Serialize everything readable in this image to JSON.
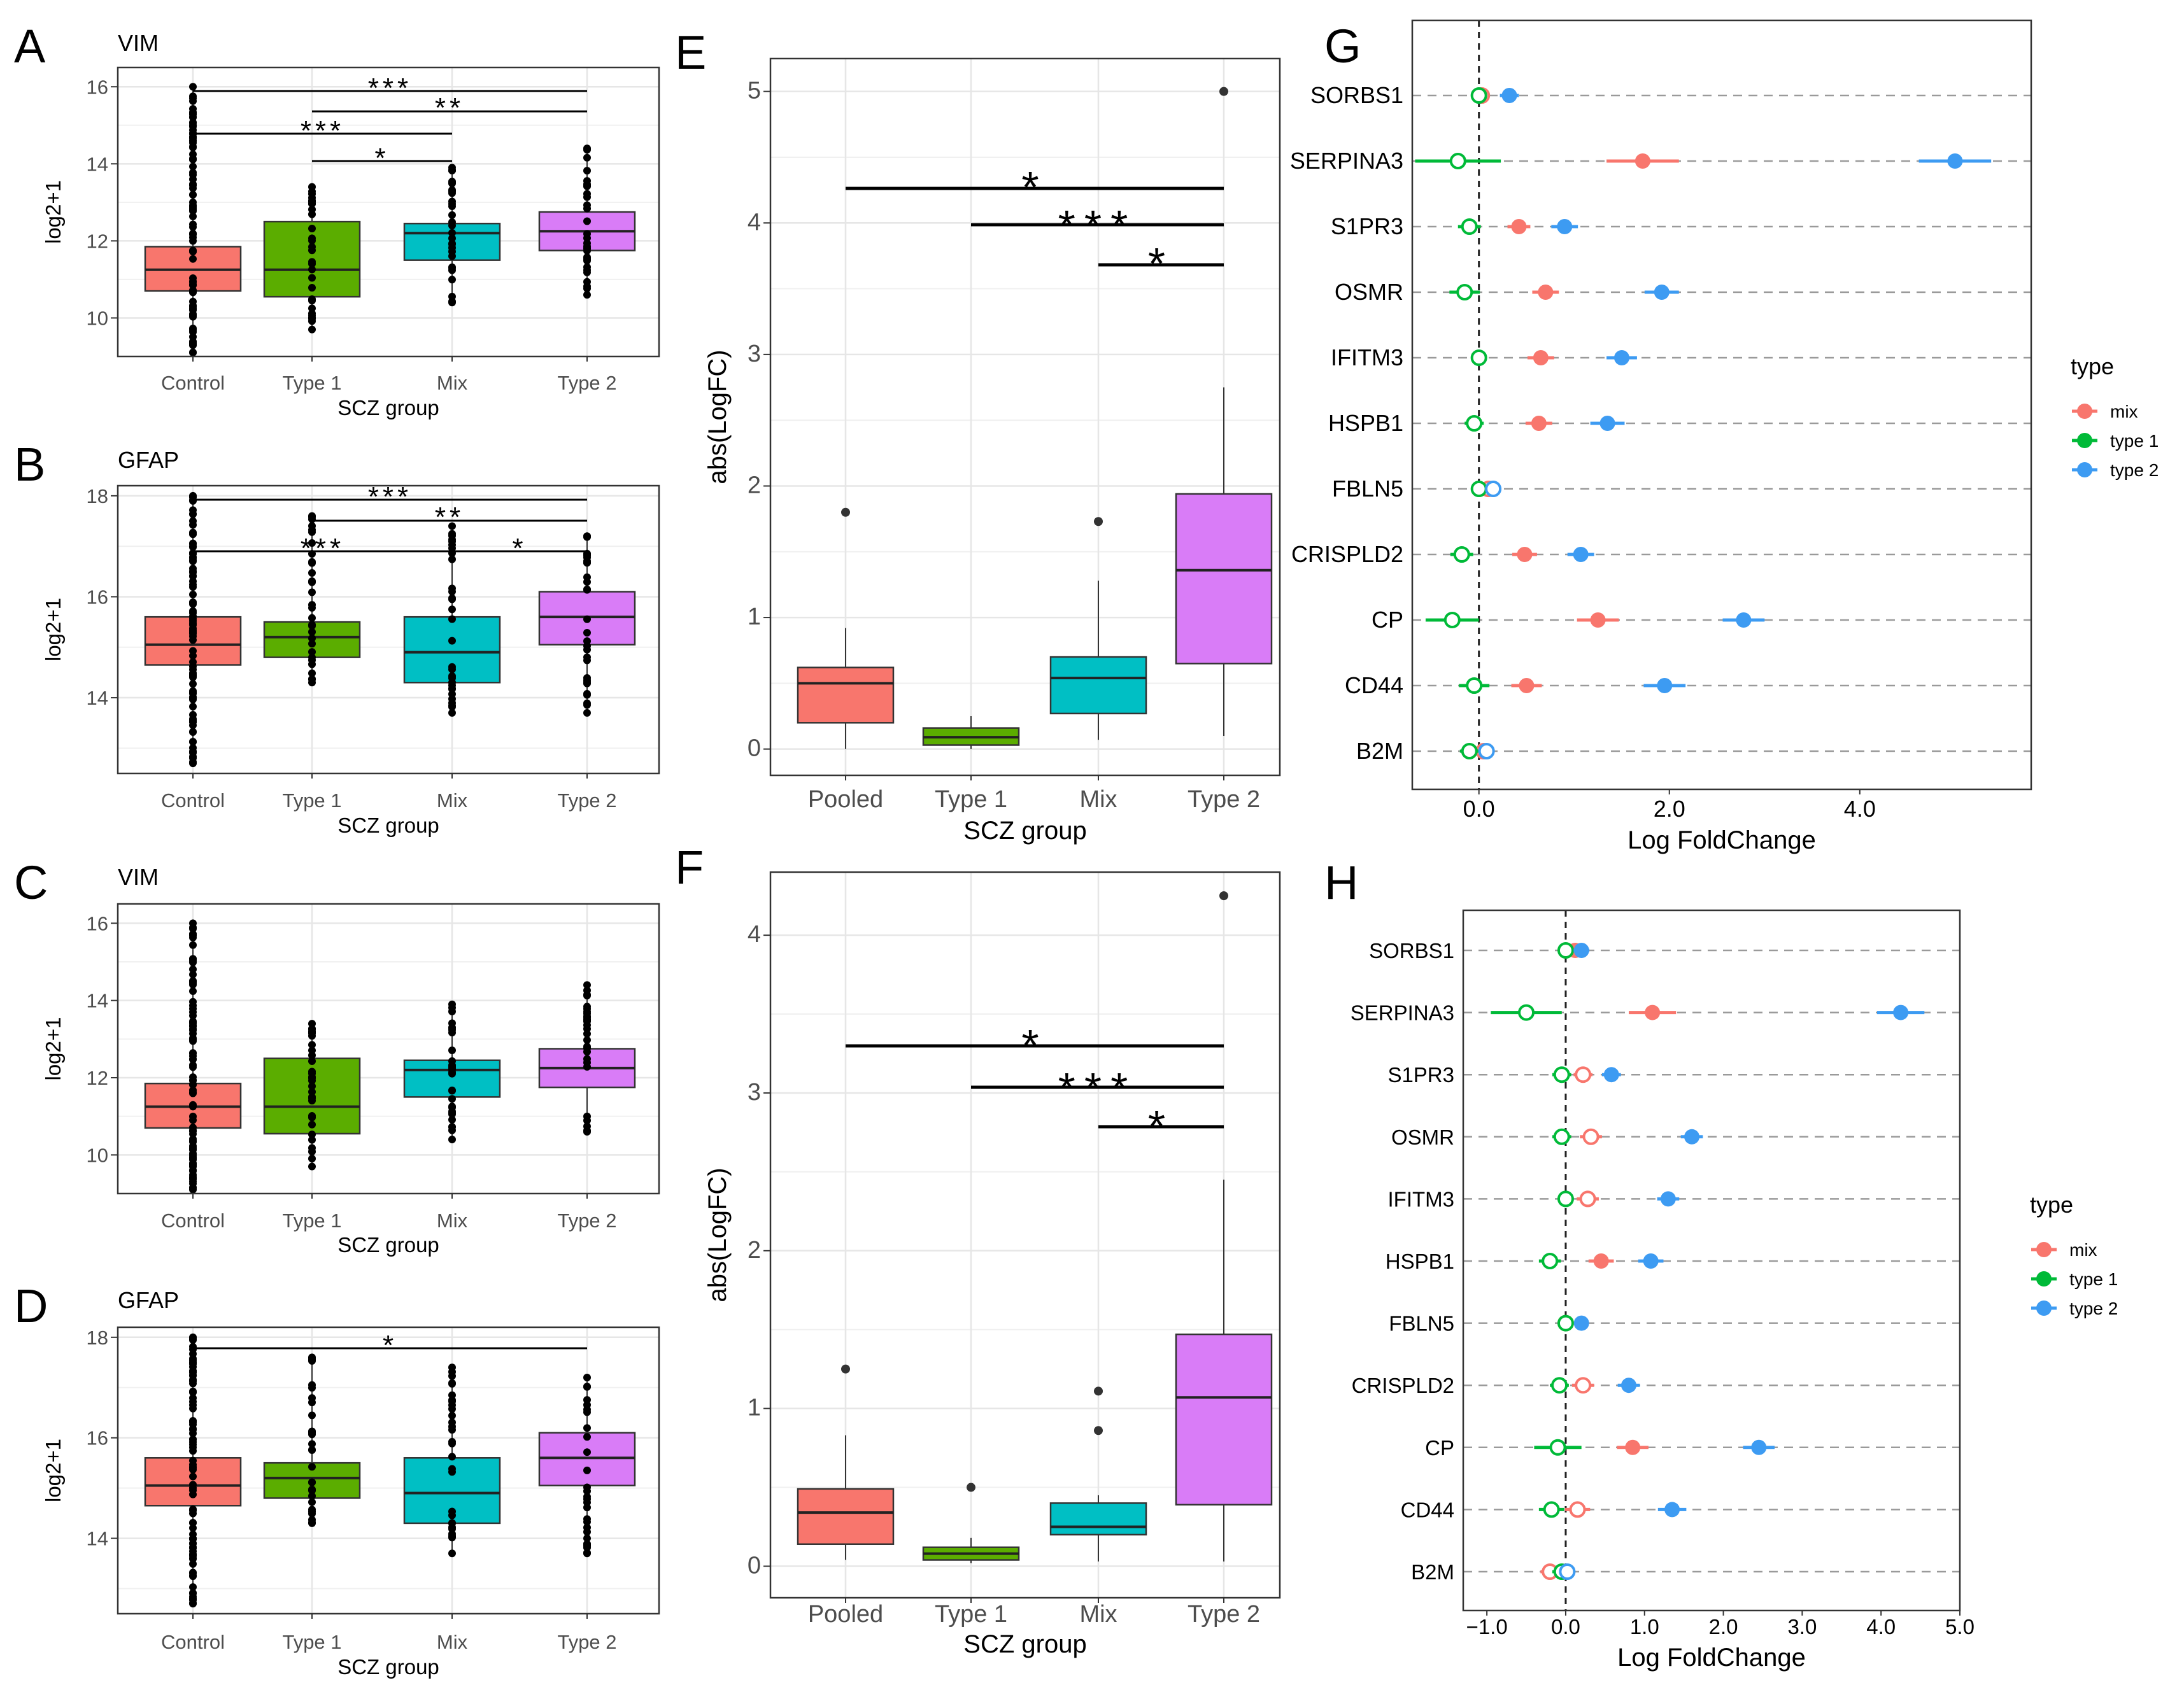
{
  "chart_data": [
    {
      "panel": "A",
      "type": "box",
      "title": "VIM",
      "xlabel": "SCZ group",
      "ylabel": "log2+1",
      "ylim": [
        9,
        16.5
      ],
      "yticks": [
        10,
        12,
        14,
        16
      ],
      "categories": [
        "Control",
        "Type 1",
        "Mix",
        "Type 2"
      ],
      "colors": [
        "#F8766D",
        "#5BAD00",
        "#00BFC4",
        "#D97CF7"
      ],
      "boxes": [
        {
          "q1": 10.7,
          "median": 11.25,
          "q3": 11.85,
          "min": 9.1,
          "max": 16.0
        },
        {
          "q1": 10.55,
          "median": 11.25,
          "q3": 12.5,
          "min": 9.7,
          "max": 13.4
        },
        {
          "q1": 11.5,
          "median": 12.2,
          "q3": 12.45,
          "min": 10.4,
          "max": 13.9
        },
        {
          "q1": 11.75,
          "median": 12.25,
          "q3": 12.75,
          "min": 10.6,
          "max": 14.4
        }
      ],
      "significance": [
        {
          "from": "Control",
          "to": "Type 2",
          "label": "***"
        },
        {
          "from": "Type 1",
          "to": "Type 2",
          "label": "**"
        },
        {
          "from": "Control",
          "to": "Mix",
          "label": "***"
        },
        {
          "from": "Type 1",
          "to": "Mix",
          "label": "*"
        }
      ]
    },
    {
      "panel": "B",
      "type": "box",
      "title": "GFAP",
      "xlabel": "SCZ group",
      "ylabel": "log2+1",
      "ylim": [
        12.5,
        18.2
      ],
      "yticks": [
        14,
        16,
        18
      ],
      "categories": [
        "Control",
        "Type 1",
        "Mix",
        "Type 2"
      ],
      "colors": [
        "#F8766D",
        "#5BAD00",
        "#00BFC4",
        "#D97CF7"
      ],
      "boxes": [
        {
          "q1": 14.65,
          "median": 15.05,
          "q3": 15.6,
          "min": 12.7,
          "max": 18.0
        },
        {
          "q1": 14.8,
          "median": 15.2,
          "q3": 15.5,
          "min": 14.3,
          "max": 17.6
        },
        {
          "q1": 14.3,
          "median": 14.9,
          "q3": 15.6,
          "min": 13.7,
          "max": 17.4
        },
        {
          "q1": 15.05,
          "median": 15.6,
          "q3": 16.1,
          "min": 13.7,
          "max": 17.2
        }
      ],
      "significance": [
        {
          "from": "Control",
          "to": "Type 2",
          "label": "***"
        },
        {
          "from": "Type 1",
          "to": "Type 2",
          "label": "**"
        },
        {
          "from": "Control",
          "to": "Mix",
          "label": "***"
        },
        {
          "from": "Mix",
          "to": "Type 2",
          "label": "*"
        }
      ]
    },
    {
      "panel": "C",
      "type": "box",
      "title": "VIM",
      "xlabel": "SCZ group",
      "ylabel": "log2+1",
      "ylim": [
        9,
        16.5
      ],
      "yticks": [
        10,
        12,
        14,
        16
      ],
      "categories": [
        "Control",
        "Type 1",
        "Mix",
        "Type 2"
      ],
      "colors": [
        "#F8766D",
        "#5BAD00",
        "#00BFC4",
        "#D97CF7"
      ],
      "boxes": [
        {
          "q1": 10.7,
          "median": 11.25,
          "q3": 11.85,
          "min": 9.1,
          "max": 16.0
        },
        {
          "q1": 10.55,
          "median": 11.25,
          "q3": 12.5,
          "min": 9.7,
          "max": 13.4
        },
        {
          "q1": 11.5,
          "median": 12.2,
          "q3": 12.45,
          "min": 10.4,
          "max": 13.9
        },
        {
          "q1": 11.75,
          "median": 12.25,
          "q3": 12.75,
          "min": 10.6,
          "max": 14.4
        }
      ],
      "significance": []
    },
    {
      "panel": "D",
      "type": "box",
      "title": "GFAP",
      "xlabel": "SCZ group",
      "ylabel": "log2+1",
      "ylim": [
        12.5,
        18.2
      ],
      "yticks": [
        14,
        16,
        18
      ],
      "categories": [
        "Control",
        "Type 1",
        "Mix",
        "Type 2"
      ],
      "colors": [
        "#F8766D",
        "#5BAD00",
        "#00BFC4",
        "#D97CF7"
      ],
      "boxes": [
        {
          "q1": 14.65,
          "median": 15.05,
          "q3": 15.6,
          "min": 12.7,
          "max": 18.0
        },
        {
          "q1": 14.8,
          "median": 15.2,
          "q3": 15.5,
          "min": 14.3,
          "max": 17.6
        },
        {
          "q1": 14.3,
          "median": 14.9,
          "q3": 15.6,
          "min": 13.7,
          "max": 17.4
        },
        {
          "q1": 15.05,
          "median": 15.6,
          "q3": 16.1,
          "min": 13.7,
          "max": 17.2
        }
      ],
      "significance": [
        {
          "from": "Control",
          "to": "Type 2",
          "label": "*"
        }
      ]
    },
    {
      "panel": "E",
      "type": "box",
      "xlabel": "SCZ group",
      "ylabel": "abs(LogFC)",
      "ylim": [
        -0.2,
        5.25
      ],
      "yticks": [
        0,
        1,
        2,
        3,
        4,
        5
      ],
      "categories": [
        "Pooled",
        "Type 1",
        "Mix",
        "Type 2"
      ],
      "colors": [
        "#F8766D",
        "#5BAD00",
        "#00BFC4",
        "#D97CF7"
      ],
      "boxes": [
        {
          "q1": 0.2,
          "median": 0.5,
          "q3": 0.62,
          "min": 0.0,
          "max": 0.92,
          "outliers": [
            1.8
          ]
        },
        {
          "q1": 0.03,
          "median": 0.09,
          "q3": 0.16,
          "min": 0.0,
          "max": 0.25,
          "outliers": []
        },
        {
          "q1": 0.27,
          "median": 0.54,
          "q3": 0.7,
          "min": 0.07,
          "max": 1.28,
          "outliers": [
            1.73
          ]
        },
        {
          "q1": 0.65,
          "median": 1.36,
          "q3": 1.94,
          "min": 0.1,
          "max": 2.75,
          "outliers": [
            5.0
          ]
        }
      ],
      "significance": [
        {
          "from": "Pooled",
          "to": "Type 2",
          "label": "*"
        },
        {
          "from": "Type 1",
          "to": "Type 2",
          "label": "***"
        },
        {
          "from": "Mix",
          "to": "Type 2",
          "label": "*"
        }
      ]
    },
    {
      "panel": "F",
      "type": "box",
      "xlabel": "SCZ group",
      "ylabel": "abs(LogFC)",
      "ylim": [
        -0.2,
        4.4
      ],
      "yticks": [
        0,
        1,
        2,
        3,
        4
      ],
      "categories": [
        "Pooled",
        "Type 1",
        "Mix",
        "Type 2"
      ],
      "colors": [
        "#F8766D",
        "#5BAD00",
        "#00BFC4",
        "#D97CF7"
      ],
      "boxes": [
        {
          "q1": 0.14,
          "median": 0.34,
          "q3": 0.49,
          "min": 0.04,
          "max": 0.83,
          "outliers": [
            1.25
          ]
        },
        {
          "q1": 0.04,
          "median": 0.08,
          "q3": 0.12,
          "min": 0.02,
          "max": 0.18,
          "outliers": [
            0.5
          ]
        },
        {
          "q1": 0.2,
          "median": 0.25,
          "q3": 0.4,
          "min": 0.03,
          "max": 0.45,
          "outliers": [
            0.86,
            1.11
          ]
        },
        {
          "q1": 0.39,
          "median": 1.07,
          "q3": 1.47,
          "min": 0.03,
          "max": 2.45,
          "outliers": [
            4.25
          ]
        }
      ],
      "significance": [
        {
          "from": "Pooled",
          "to": "Type 2",
          "label": "*"
        },
        {
          "from": "Type 1",
          "to": "Type 2",
          "label": "***"
        },
        {
          "from": "Mix",
          "to": "Type 2",
          "label": "*"
        }
      ]
    },
    {
      "panel": "G",
      "type": "scatter",
      "xlabel": "Log FoldChange",
      "xlim": [
        -0.7,
        5.8
      ],
      "xticks": [
        0,
        2,
        4
      ],
      "xticklabels": [
        "0.0",
        "2.0",
        "4.0"
      ],
      "genes": [
        "SORBS1",
        "SERPINA3",
        "S1PR3",
        "OSMR",
        "IFITM3",
        "HSPB1",
        "FBLN5",
        "CRISPLD2",
        "CP",
        "CD44",
        "B2M"
      ],
      "legend": {
        "title": "type",
        "entries": [
          "mix",
          "type 1",
          "type 2"
        ],
        "colors": [
          "#F8766D",
          "#00BA38",
          "#3D9BF2"
        ]
      },
      "series": [
        {
          "name": "mix",
          "values": [
            0.03,
            1.72,
            0.42,
            0.7,
            0.65,
            0.63,
            0.1,
            0.48,
            1.25,
            0.5,
            0.05
          ],
          "ci": [
            0.08,
            0.38,
            0.12,
            0.14,
            0.14,
            0.14,
            0.07,
            0.13,
            0.22,
            0.16,
            0.07
          ],
          "filled": [
            false,
            true,
            true,
            true,
            true,
            true,
            false,
            true,
            true,
            true,
            false
          ]
        },
        {
          "name": "type 1",
          "values": [
            0.0,
            -0.22,
            -0.1,
            -0.15,
            0.0,
            -0.05,
            0.0,
            -0.18,
            -0.28,
            -0.05,
            -0.1
          ],
          "ci": [
            0.06,
            0.45,
            0.12,
            0.16,
            0.07,
            0.1,
            0.06,
            0.12,
            0.28,
            0.16,
            0.1
          ],
          "filled": [
            false,
            false,
            false,
            false,
            false,
            false,
            false,
            false,
            false,
            false,
            false
          ]
        },
        {
          "name": "type 2",
          "values": [
            0.32,
            5.0,
            0.9,
            1.92,
            1.5,
            1.35,
            0.15,
            1.07,
            2.78,
            1.95,
            0.08
          ],
          "ci": [
            0.1,
            0.38,
            0.14,
            0.18,
            0.16,
            0.18,
            0.07,
            0.14,
            0.22,
            0.22,
            0.07
          ],
          "filled": [
            true,
            true,
            true,
            true,
            true,
            true,
            false,
            true,
            true,
            true,
            false
          ]
        }
      ]
    },
    {
      "panel": "H",
      "type": "scatter",
      "xlabel": "Log FoldChange",
      "xlim": [
        -1.3,
        5.0
      ],
      "xticks": [
        -1,
        0,
        1,
        2,
        3,
        4,
        5
      ],
      "xticklabels": [
        "−1.0",
        "0.0",
        "1.0",
        "2.0",
        "3.0",
        "4.0",
        "5.0"
      ],
      "genes": [
        "SORBS1",
        "SERPINA3",
        "S1PR3",
        "OSMR",
        "IFITM3",
        "HSPB1",
        "FBLN5",
        "CRISPLD2",
        "CP",
        "CD44",
        "B2M"
      ],
      "legend": {
        "title": "type",
        "entries": [
          "mix",
          "type 1",
          "type 2"
        ],
        "colors": [
          "#F8766D",
          "#00BA38",
          "#3D9BF2"
        ]
      },
      "series": [
        {
          "name": "mix",
          "values": [
            0.12,
            1.1,
            0.22,
            0.32,
            0.28,
            0.45,
            0.0,
            0.22,
            0.85,
            0.15,
            -0.2
          ],
          "ci": [
            0.08,
            0.3,
            0.12,
            0.14,
            0.14,
            0.16,
            0.06,
            0.14,
            0.2,
            0.16,
            0.12
          ],
          "filled": [
            true,
            true,
            false,
            false,
            false,
            true,
            false,
            false,
            true,
            false,
            false
          ]
        },
        {
          "name": "type 1",
          "values": [
            0.0,
            -0.5,
            -0.05,
            -0.05,
            0.0,
            -0.2,
            0.0,
            -0.08,
            -0.1,
            -0.18,
            -0.05
          ],
          "ci": [
            0.08,
            0.45,
            0.12,
            0.12,
            0.1,
            0.14,
            0.06,
            0.12,
            0.3,
            0.16,
            0.12
          ],
          "filled": [
            false,
            false,
            false,
            false,
            false,
            false,
            false,
            false,
            false,
            false,
            false
          ]
        },
        {
          "name": "type 2",
          "values": [
            0.2,
            4.25,
            0.58,
            1.6,
            1.3,
            1.08,
            0.2,
            0.8,
            2.45,
            1.35,
            0.02
          ],
          "ci": [
            0.1,
            0.3,
            0.12,
            0.14,
            0.14,
            0.16,
            0.06,
            0.14,
            0.2,
            0.18,
            0.1
          ],
          "filled": [
            true,
            true,
            true,
            true,
            true,
            true,
            true,
            true,
            true,
            true,
            false
          ]
        }
      ]
    }
  ]
}
